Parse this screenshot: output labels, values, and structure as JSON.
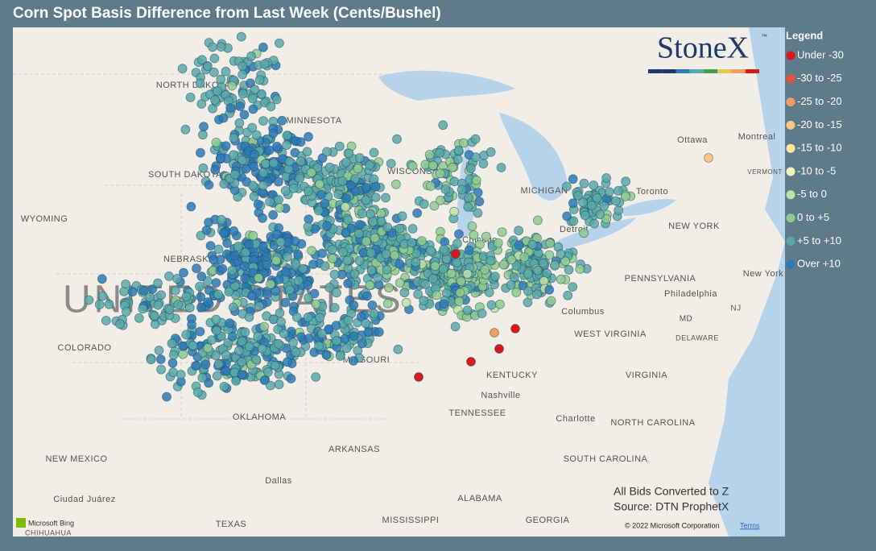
{
  "header": {
    "title": "Corn Spot Basis Difference from Last Week (Cents/Bushel)"
  },
  "logo": {
    "text": "StoneX",
    "mark": "™"
  },
  "legend": {
    "title": "Legend",
    "items": [
      {
        "label": "Under -30",
        "color": "#d7191c"
      },
      {
        "label": "-30 to -25",
        "color": "#e5533b"
      },
      {
        "label": "-25 to -20",
        "color": "#f29e5c"
      },
      {
        "label": "-20 to -15",
        "color": "#fbc97c"
      },
      {
        "label": "-15 to -10",
        "color": "#fbe89a"
      },
      {
        "label": "-10 to -5",
        "color": "#eef5b8"
      },
      {
        "label": "-5 to 0",
        "color": "#bfe3a4"
      },
      {
        "label": "0 to +5",
        "color": "#8fcb8e"
      },
      {
        "label": "+5 to +10",
        "color": "#58a9a9"
      },
      {
        "label": "Over +10",
        "color": "#2c7bb6"
      }
    ]
  },
  "map_labels": [
    "NORTH DAKOTA",
    "MINNESOTA",
    "SOUTH DAKOTA",
    "WISCONSIN",
    "WYOMING",
    "NEBRASKA",
    "UNITED STATES",
    "COLORADO",
    "MISSOURI",
    "KENTUCKY",
    "WEST VIRGINIA",
    "VIRGINIA",
    "OKLAHOMA",
    "TENNESSEE",
    "NORTH CAROLINA",
    "ARKANSAS",
    "NEW MEXICO",
    "SOUTH CAROLINA",
    "TEXAS",
    "MISSISSIPPI",
    "ALABAMA",
    "GEORGIA",
    "PENNSYLVANIA",
    "NEW YORK",
    "MICHIGAN",
    "Ottawa",
    "Montreal",
    "Toronto",
    "Detroit",
    "Chicago",
    "Columbus",
    "Philadelphia",
    "Nashville",
    "Charlotte",
    "Dallas",
    "Ciudad Juárez",
    "CHIHUAHUA",
    "MD",
    "DELAWARE",
    "NJ",
    "VERMONT",
    "New York"
  ],
  "notes": [
    "All Bids Converted to Z",
    "Source: DTN ProphetX"
  ],
  "attribution": {
    "bing": "Microsoft Bing",
    "copyright": "© 2022 Microsoft Corporation",
    "terms": "Terms"
  }
}
